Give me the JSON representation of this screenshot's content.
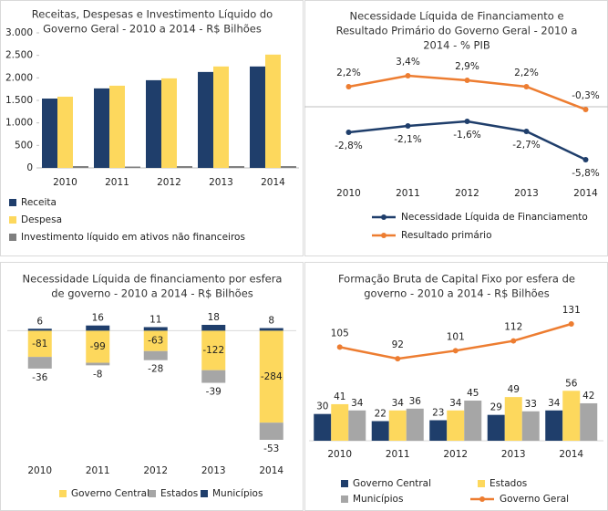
{
  "chart_data": [
    {
      "type": "bar",
      "title": [
        "Receitas, Despesas e Investimento Líquido do",
        "Governo Geral - 2010 a 2014 - R$ Bilhões"
      ],
      "categories": [
        "2010",
        "2011",
        "2012",
        "2013",
        "2014"
      ],
      "series": [
        {
          "name": "Receita",
          "color": "#1f3e6b",
          "values": [
            1540,
            1766,
            1948,
            2131,
            2253
          ]
        },
        {
          "name": "Despesa",
          "color": "#fdd85d",
          "values": [
            1582,
            1826,
            1989,
            2253,
            2517
          ]
        },
        {
          "name": "Investimento líquido em ativos não financeiros",
          "color": "#7f7f7f",
          "values": [
            40,
            30,
            40,
            40,
            40
          ]
        }
      ],
      "ylim": [
        0,
        3000
      ],
      "yticks": [
        0,
        500,
        {
          "value": 1000,
          "label": "1.000"
        },
        {
          "value": 1500,
          "label": "1.500"
        },
        {
          "value": 2000,
          "label": "2.000"
        },
        {
          "value": 2500,
          "label": "2.500"
        },
        {
          "value": 3000,
          "label": "3.000"
        }
      ]
    },
    {
      "type": "line",
      "title": [
        "Necessidade Líquida de Financiamento e",
        "Resultado Primário do Governo Geral - 2010 a",
        "2014 - % PIB"
      ],
      "categories": [
        "2010",
        "2011",
        "2012",
        "2013",
        "2014"
      ],
      "series": [
        {
          "name": "Necessidade Líquida de Financiamento",
          "color": "#1f3e6b",
          "values": [
            -2.8,
            -2.1,
            -1.6,
            -2.7,
            -5.8
          ],
          "value_labels": [
            "-2,8%",
            "-2,1%",
            "-1,6%",
            "-2,7%",
            "-5,8%"
          ]
        },
        {
          "name": "Resultado primário",
          "color": "#ed7d31",
          "values": [
            2.2,
            3.4,
            2.9,
            2.2,
            -0.3
          ],
          "value_labels": [
            "2,2%",
            "3,4%",
            "2,9%",
            "2,2%",
            "-0,3%"
          ]
        }
      ]
    },
    {
      "type": "stacked_bar",
      "title": [
        "Necessidade Líquida de financiamento por esfera",
        "de governo - 2010 a 2014 - R$ Bilhões"
      ],
      "categories": [
        "2010",
        "2011",
        "2012",
        "2013",
        "2014"
      ],
      "series": [
        {
          "name": "Governo Central",
          "color": "#fdd85d",
          "values": [
            -81,
            -99,
            -63,
            -122,
            -284
          ]
        },
        {
          "name": "Estados",
          "color": "#a6a6a6",
          "values": [
            -36,
            -8,
            -28,
            -39,
            -53
          ]
        },
        {
          "name": "Municípios",
          "color": "#1f3e6b",
          "values": [
            6,
            16,
            11,
            18,
            8
          ]
        }
      ]
    },
    {
      "type": "combo",
      "title": [
        "Formação Bruta de Capital Fixo por esfera de",
        "governo - 2010 a 2014 - R$ Bilhões"
      ],
      "categories": [
        "2010",
        "2011",
        "2012",
        "2013",
        "2014"
      ],
      "series": [
        {
          "name": "Governo Central",
          "color": "#1f3e6b",
          "values": [
            30,
            22,
            23,
            29,
            34
          ]
        },
        {
          "name": "Estados",
          "color": "#fdd85d",
          "values": [
            41,
            34,
            34,
            49,
            56
          ]
        },
        {
          "name": "Municípios",
          "color": "#a6a6a6",
          "values": [
            34,
            36,
            45,
            33,
            42
          ]
        },
        {
          "name": "Governo Geral",
          "color": "#ed7d31",
          "type": "line",
          "values": [
            105,
            92,
            101,
            112,
            131
          ]
        }
      ]
    }
  ]
}
